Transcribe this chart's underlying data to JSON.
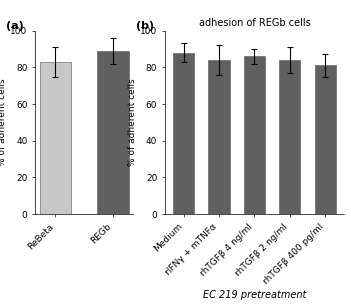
{
  "panel_a": {
    "categories": [
      "ReBeta",
      "REGb"
    ],
    "values": [
      83,
      89
    ],
    "errors": [
      8,
      7
    ],
    "colors": [
      "#c8c8c8",
      "#606060"
    ],
    "ylabel": "% of adherent cells",
    "ylim": [
      0,
      100
    ],
    "yticks": [
      0,
      20,
      40,
      60,
      80,
      100
    ],
    "label": "(a)"
  },
  "panel_b": {
    "categories": [
      "Medium",
      "rIFNγ + mTNFα",
      "rhTGFβ 4 ng/ml",
      "rhTGFβ 2 ng/ml",
      "rhTGFβ 400 pg/ml"
    ],
    "values": [
      88,
      84,
      86,
      84,
      81
    ],
    "errors": [
      5,
      8,
      4,
      7,
      6
    ],
    "color": "#606060",
    "title": "adhesion of REGb cells",
    "ylabel": "% of adherent cells",
    "xlabel": "EC 219 pretreatment",
    "ylim": [
      0,
      100
    ],
    "yticks": [
      0,
      20,
      40,
      60,
      80,
      100
    ],
    "label": "(b)"
  }
}
